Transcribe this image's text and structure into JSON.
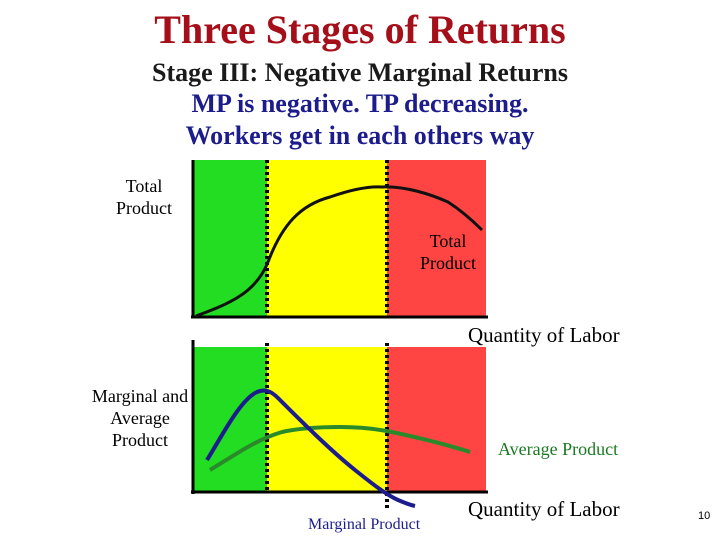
{
  "slide": {
    "title": "Three Stages of Returns",
    "subtitle": "Stage III: Negative Marginal Returns",
    "line2": "MP is negative. TP decreasing.",
    "line3": "Workers get in each others way",
    "page_number": "10"
  },
  "top_chart": {
    "y_axis_label": "Total Product",
    "curve_label": "Total Product",
    "x_axis_label": "Quantity of Labor"
  },
  "bottom_chart": {
    "y_axis_label": "Marginal and Average Product",
    "average_label": "Average Product",
    "marginal_label": "Marginal Product",
    "x_axis_label": "Quantity of Labor"
  },
  "colors": {
    "stage1": "#22dd22",
    "stage2": "#ffff00",
    "stage3": "#ff4444",
    "tp_curve": "#111111",
    "mp_curve": "#1c1c8c",
    "ap_curve": "#2a8a2a",
    "title": "#a50f1a"
  }
}
